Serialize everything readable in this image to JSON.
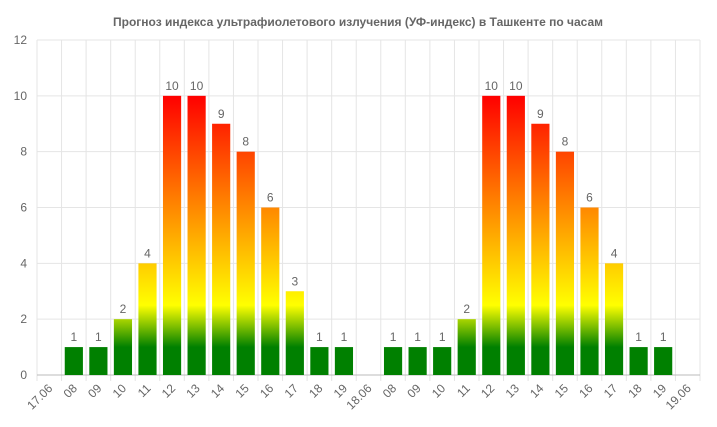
{
  "chart_data": {
    "type": "bar",
    "title": "Прогноз индекса ультрафиолетового излучения (УФ-индекс) в Ташкенте по часам",
    "xlabel": "",
    "ylabel": "",
    "ylim": [
      0,
      12
    ],
    "yticks": [
      0,
      2,
      4,
      6,
      8,
      10,
      12
    ],
    "grid": true,
    "categories": [
      "17.06",
      "08",
      "09",
      "10",
      "11",
      "12",
      "13",
      "14",
      "15",
      "16",
      "17",
      "18",
      "19",
      "18.06",
      "08",
      "09",
      "10",
      "11",
      "12",
      "13",
      "14",
      "15",
      "16",
      "17",
      "18",
      "19",
      "19.06"
    ],
    "values": [
      null,
      1,
      1,
      2,
      4,
      10,
      10,
      9,
      8,
      6,
      3,
      1,
      1,
      null,
      1,
      1,
      1,
      2,
      10,
      10,
      9,
      8,
      6,
      4,
      1,
      1,
      null
    ],
    "colors": {
      "low": "#008000",
      "mid": "#ffff00",
      "high": "#ff8c00",
      "max": "#ff0000",
      "text": "#666666",
      "grid": "#e5e5e5"
    }
  }
}
